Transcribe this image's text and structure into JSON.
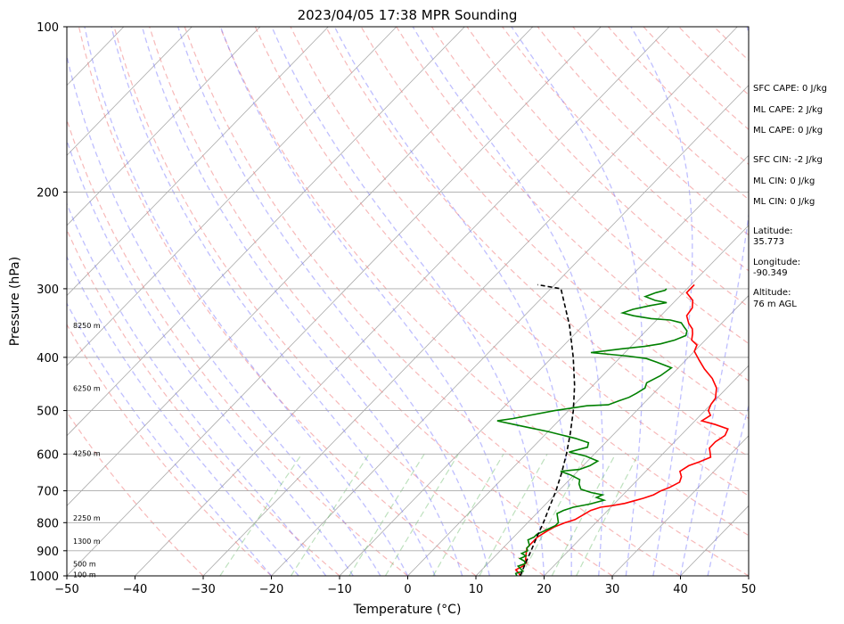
{
  "chart_data": {
    "type": "line",
    "title": "2023/04/05 17:38 MPR Sounding",
    "xlabel": "Temperature (°C)",
    "ylabel": "Pressure (hPa)",
    "xlim": [
      -50,
      50
    ],
    "ylim": [
      1000,
      100
    ],
    "y_scale": "log",
    "x_ticks": [
      "−50",
      "−40",
      "−30",
      "−20",
      "−10",
      "0",
      "10",
      "20",
      "30",
      "40",
      "50"
    ],
    "x_tick_values": [
      -50,
      -40,
      -30,
      -20,
      -10,
      0,
      10,
      20,
      30,
      40,
      50
    ],
    "y_ticks": [
      "100",
      "200",
      "300",
      "400",
      "500",
      "600",
      "700",
      "800",
      "900",
      "1000"
    ],
    "y_tick_values": [
      100,
      200,
      300,
      400,
      500,
      600,
      700,
      800,
      900,
      1000
    ],
    "grid": "horizontal isobars",
    "height_labels": [
      {
        "text": "8250 m",
        "p": 350
      },
      {
        "text": "6250 m",
        "p": 455
      },
      {
        "text": "4250 m",
        "p": 598
      },
      {
        "text": "2250 m",
        "p": 785
      },
      {
        "text": "1300 m",
        "p": 865
      },
      {
        "text": "500 m",
        "p": 950
      },
      {
        "text": "100 m",
        "p": 994
      }
    ],
    "series": [
      {
        "color": "#ff0000",
        "points": [
          [
            16.5,
            1000
          ],
          [
            16,
            990
          ],
          [
            15,
            975
          ],
          [
            15.5,
            960
          ],
          [
            15.5,
            945
          ],
          [
            15,
            935
          ],
          [
            14.5,
            920
          ],
          [
            14,
            905
          ],
          [
            13.5,
            890
          ],
          [
            13.5,
            870
          ],
          [
            13.5,
            850
          ],
          [
            14,
            830
          ],
          [
            14.5,
            815
          ],
          [
            15.5,
            800
          ],
          [
            16.5,
            790
          ],
          [
            17,
            775
          ],
          [
            17.5,
            760
          ],
          [
            18.5,
            750
          ],
          [
            20,
            745
          ],
          [
            21.5,
            738
          ],
          [
            22.5,
            730
          ],
          [
            23.5,
            722
          ],
          [
            24.5,
            712
          ],
          [
            25,
            700
          ],
          [
            25.8,
            690
          ],
          [
            26.5,
            675
          ],
          [
            26,
            660
          ],
          [
            25,
            645
          ],
          [
            25.5,
            630
          ],
          [
            26.5,
            620
          ],
          [
            27.5,
            608
          ],
          [
            26.8,
            597
          ],
          [
            26,
            585
          ],
          [
            26,
            570
          ],
          [
            26.5,
            555
          ],
          [
            26,
            540
          ],
          [
            23.5,
            530
          ],
          [
            21,
            522
          ],
          [
            21.5,
            510
          ],
          [
            20.5,
            500
          ],
          [
            20,
            487
          ],
          [
            19.8,
            475
          ],
          [
            18.5,
            455
          ],
          [
            16.5,
            437
          ],
          [
            14,
            420
          ],
          [
            12,
            405
          ],
          [
            10,
            390
          ],
          [
            9.5,
            380
          ],
          [
            8,
            372
          ],
          [
            7.2,
            362
          ],
          [
            6.5,
            355
          ],
          [
            5.2,
            347
          ],
          [
            3.8,
            336
          ],
          [
            3.5,
            325
          ],
          [
            2.5,
            315
          ],
          [
            0.5,
            305
          ],
          [
            0.5,
            295
          ]
        ]
      },
      {
        "color": "#008000",
        "points": [
          [
            16,
            1000
          ],
          [
            15.5,
            990
          ],
          [
            16.2,
            980
          ],
          [
            15.5,
            970
          ],
          [
            14.8,
            960
          ],
          [
            15.5,
            950
          ],
          [
            15,
            940
          ],
          [
            14,
            930
          ],
          [
            14.5,
            920
          ],
          [
            13.5,
            910
          ],
          [
            14,
            900
          ],
          [
            13.5,
            890
          ],
          [
            13.5,
            880
          ],
          [
            13,
            870
          ],
          [
            12.5,
            860
          ],
          [
            13,
            850
          ],
          [
            13,
            840
          ],
          [
            13.5,
            830
          ],
          [
            14,
            820
          ],
          [
            14.5,
            810
          ],
          [
            14.5,
            800
          ],
          [
            14,
            790
          ],
          [
            13.5,
            780
          ],
          [
            13,
            770
          ],
          [
            13.5,
            760
          ],
          [
            14.5,
            750
          ],
          [
            16.5,
            740
          ],
          [
            18,
            728
          ],
          [
            16.5,
            720
          ],
          [
            17,
            712
          ],
          [
            15,
            705
          ],
          [
            13,
            695
          ],
          [
            12,
            680
          ],
          [
            11.5,
            668
          ],
          [
            9.5,
            655
          ],
          [
            7.5,
            645
          ],
          [
            10,
            640
          ],
          [
            11,
            630
          ],
          [
            11.5,
            618
          ],
          [
            9,
            605
          ],
          [
            6,
            595
          ],
          [
            8,
            583
          ],
          [
            7.5,
            572
          ],
          [
            5,
            562
          ],
          [
            2.5,
            554
          ],
          [
            0,
            546
          ],
          [
            -3,
            538
          ],
          [
            -6,
            530
          ],
          [
            -9,
            522
          ],
          [
            -7,
            517
          ],
          [
            -5,
            510
          ],
          [
            -2,
            500
          ],
          [
            0,
            495
          ],
          [
            2,
            490
          ],
          [
            5,
            488
          ],
          [
            6,
            480
          ],
          [
            7,
            473
          ],
          [
            7.5,
            465
          ],
          [
            8,
            455
          ],
          [
            7.5,
            445
          ],
          [
            8.5,
            432
          ],
          [
            9,
            418
          ],
          [
            6,
            408
          ],
          [
            4,
            402
          ],
          [
            1,
            398
          ],
          [
            -2,
            395
          ],
          [
            -5,
            392
          ],
          [
            -3,
            389
          ],
          [
            -1,
            386
          ],
          [
            2,
            382
          ],
          [
            4,
            378
          ],
          [
            5.5,
            372
          ],
          [
            6.5,
            365
          ],
          [
            6,
            358
          ],
          [
            5,
            352
          ],
          [
            4,
            346
          ],
          [
            2,
            342
          ],
          [
            -1,
            340
          ],
          [
            -4,
            336
          ],
          [
            -6,
            332
          ],
          [
            -5,
            327
          ],
          [
            -3,
            322
          ],
          [
            -1,
            318
          ],
          [
            -3,
            315
          ],
          [
            -5,
            310
          ],
          [
            -4,
            305
          ],
          [
            -3,
            302
          ],
          [
            -3,
            300
          ]
        ]
      },
      {
        "color": "#000000",
        "dashed": true,
        "points": [
          [
            16.5,
            1000
          ],
          [
            15.5,
            950
          ],
          [
            14.5,
            900
          ],
          [
            13.4,
            850
          ],
          [
            12.3,
            800
          ],
          [
            11,
            750
          ],
          [
            9.6,
            700
          ],
          [
            7.9,
            650
          ],
          [
            5.9,
            600
          ],
          [
            3.5,
            550
          ],
          [
            0.7,
            500
          ],
          [
            -2.7,
            450
          ],
          [
            -6.9,
            400
          ],
          [
            -12,
            350
          ],
          [
            -18.5,
            300
          ],
          [
            -22.5,
            295
          ]
        ]
      }
    ]
  },
  "panel": {
    "sfc_cape": "SFC CAPE: 0 J/kg",
    "ml_cape_1": "ML CAPE: 2 J/kg",
    "ml_cape_2": "ML CAPE: 0 J/kg",
    "sfc_cin": "SFC CIN: -2 J/kg",
    "ml_cin_1": "ML CIN: 0 J/kg",
    "ml_cin_2": "ML CIN: 0 J/kg",
    "lat_label": "Latitude:",
    "lat_value": "35.773",
    "lon_label": "Longitude:",
    "lon_value": "-90.349",
    "alt_label": "Altitude:",
    "alt_value": "76 m AGL"
  }
}
